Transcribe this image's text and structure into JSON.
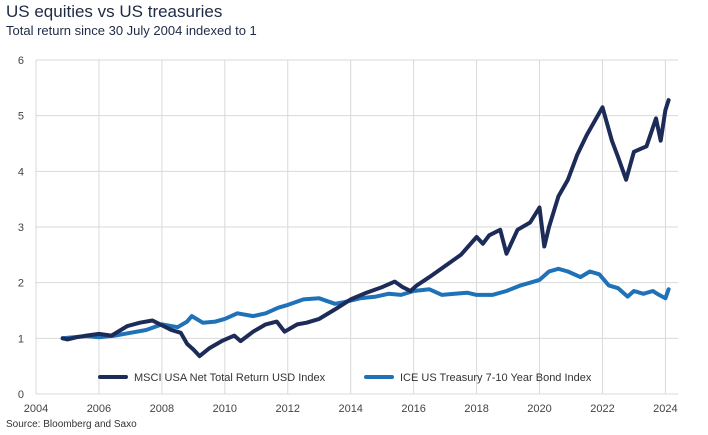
{
  "title": "US equities vs US treasuries",
  "subtitle": "Total return since 30 July 2004 indexed to 1",
  "source": "Source: Bloomberg and Saxo",
  "colors": {
    "equities": "#1c2b57",
    "treasuries": "#1f72b8",
    "grid": "#d9d9d9"
  },
  "chart_data": {
    "type": "line",
    "title": "US equities vs US treasuries",
    "subtitle": "Total return since 30 July 2004 indexed to 1",
    "xlim": [
      2004,
      2024.4
    ],
    "ylim": [
      0,
      6
    ],
    "xticks": [
      2004,
      2006,
      2008,
      2010,
      2012,
      2014,
      2016,
      2018,
      2020,
      2022,
      2024
    ],
    "xtick_labels": [
      "2004",
      "2006",
      "2008",
      "2010",
      "2012",
      "2014",
      "2016",
      "2018",
      "2020",
      "2022",
      "2024"
    ],
    "yticks": [
      0,
      1,
      2,
      3,
      4,
      5,
      6
    ],
    "ytick_labels": [
      "0",
      "1",
      "2",
      "3",
      "4",
      "5",
      "6"
    ],
    "grid": true,
    "legend_position": "bottom",
    "series": [
      {
        "name": "MSCI USA Net Total Return USD Index",
        "color": "#1c2b57",
        "x": [
          2004.85,
          2005.0,
          2005.3,
          2005.6,
          2006.0,
          2006.4,
          2006.9,
          2007.3,
          2007.7,
          2007.95,
          2008.3,
          2008.6,
          2008.8,
          2009.0,
          2009.2,
          2009.5,
          2009.9,
          2010.3,
          2010.5,
          2010.9,
          2011.3,
          2011.65,
          2011.9,
          2012.3,
          2012.6,
          2013.0,
          2013.5,
          2014.0,
          2014.5,
          2015.0,
          2015.4,
          2015.65,
          2015.9,
          2016.1,
          2016.5,
          2017.0,
          2017.5,
          2018.0,
          2018.2,
          2018.4,
          2018.75,
          2018.95,
          2019.3,
          2019.7,
          2020.0,
          2020.15,
          2020.3,
          2020.6,
          2020.9,
          2021.2,
          2021.5,
          2021.8,
          2022.0,
          2022.3,
          2022.5,
          2022.75,
          2023.0,
          2023.4,
          2023.7,
          2023.85,
          2024.0,
          2024.1
        ],
        "y": [
          1.0,
          0.98,
          1.02,
          1.05,
          1.08,
          1.05,
          1.22,
          1.28,
          1.32,
          1.25,
          1.15,
          1.1,
          0.9,
          0.8,
          0.68,
          0.82,
          0.95,
          1.05,
          0.95,
          1.12,
          1.25,
          1.3,
          1.12,
          1.25,
          1.28,
          1.35,
          1.52,
          1.7,
          1.82,
          1.92,
          2.02,
          1.92,
          1.85,
          1.95,
          2.1,
          2.3,
          2.5,
          2.82,
          2.7,
          2.85,
          2.95,
          2.52,
          2.95,
          3.08,
          3.35,
          2.65,
          3.0,
          3.55,
          3.85,
          4.3,
          4.65,
          4.95,
          5.15,
          4.55,
          4.25,
          3.85,
          4.35,
          4.45,
          4.95,
          4.55,
          5.1,
          5.28
        ]
      },
      {
        "name": "ICE US Treasury 7-10 Year Bond Index",
        "color": "#1f72b8",
        "x": [
          2004.85,
          2005.2,
          2005.6,
          2006.0,
          2006.5,
          2007.0,
          2007.5,
          2008.0,
          2008.5,
          2008.8,
          2008.95,
          2009.3,
          2009.7,
          2010.0,
          2010.4,
          2010.9,
          2011.3,
          2011.7,
          2012.0,
          2012.5,
          2013.0,
          2013.5,
          2013.8,
          2014.3,
          2014.8,
          2015.2,
          2015.6,
          2016.0,
          2016.5,
          2016.9,
          2017.3,
          2017.7,
          2018.0,
          2018.5,
          2018.95,
          2019.4,
          2019.7,
          2020.0,
          2020.3,
          2020.6,
          2020.9,
          2021.3,
          2021.6,
          2021.9,
          2022.2,
          2022.5,
          2022.8,
          2023.0,
          2023.3,
          2023.6,
          2023.8,
          2024.0,
          2024.1
        ],
        "y": [
          1.0,
          1.02,
          1.04,
          1.02,
          1.05,
          1.1,
          1.15,
          1.25,
          1.2,
          1.3,
          1.4,
          1.28,
          1.3,
          1.35,
          1.45,
          1.4,
          1.45,
          1.55,
          1.6,
          1.7,
          1.72,
          1.62,
          1.65,
          1.72,
          1.75,
          1.8,
          1.78,
          1.85,
          1.88,
          1.78,
          1.8,
          1.82,
          1.78,
          1.78,
          1.85,
          1.95,
          2.0,
          2.05,
          2.2,
          2.25,
          2.2,
          2.1,
          2.2,
          2.15,
          1.95,
          1.9,
          1.75,
          1.85,
          1.8,
          1.85,
          1.78,
          1.72,
          1.88
        ]
      }
    ]
  }
}
